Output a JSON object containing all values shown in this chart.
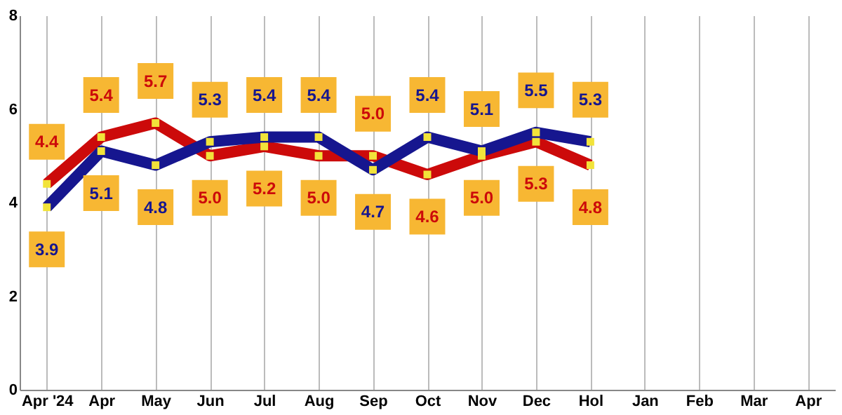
{
  "chart_data": {
    "type": "line",
    "categories": [
      "Apr '24",
      "Apr",
      "May",
      "Jun",
      "Jul",
      "Aug",
      "Sep",
      "Oct",
      "Nov",
      "Dec",
      "Hol",
      "Jan",
      "Feb",
      "Mar",
      "Apr"
    ],
    "series": [
      {
        "color": "#cc0a0a",
        "values": [
          4.4,
          5.4,
          5.7,
          5.0,
          5.2,
          5.0,
          5.0,
          4.6,
          5.0,
          5.3,
          4.8,
          null,
          null,
          null,
          null
        ],
        "value_labels": [
          "4.4",
          "5.4",
          "5.7",
          "5.0",
          "5.2",
          "5.0",
          "5.0",
          "4.6",
          "5.0",
          "5.3",
          "4.8",
          null,
          null,
          null,
          null
        ]
      },
      {
        "color": "#16168f",
        "values": [
          3.9,
          5.1,
          4.8,
          5.3,
          5.4,
          5.4,
          4.7,
          5.4,
          5.1,
          5.5,
          5.3,
          null,
          null,
          null,
          null
        ],
        "value_labels": [
          "3.9",
          "5.1",
          "4.8",
          "5.3",
          "5.4",
          "5.4",
          "4.7",
          "5.4",
          "5.1",
          "5.5",
          "5.3",
          null,
          null,
          null,
          null
        ]
      }
    ],
    "ylim": [
      0,
      8
    ],
    "yticks": [
      0,
      2,
      4,
      6,
      8
    ],
    "grid": "x",
    "marker": "square",
    "line_style": "solid"
  }
}
